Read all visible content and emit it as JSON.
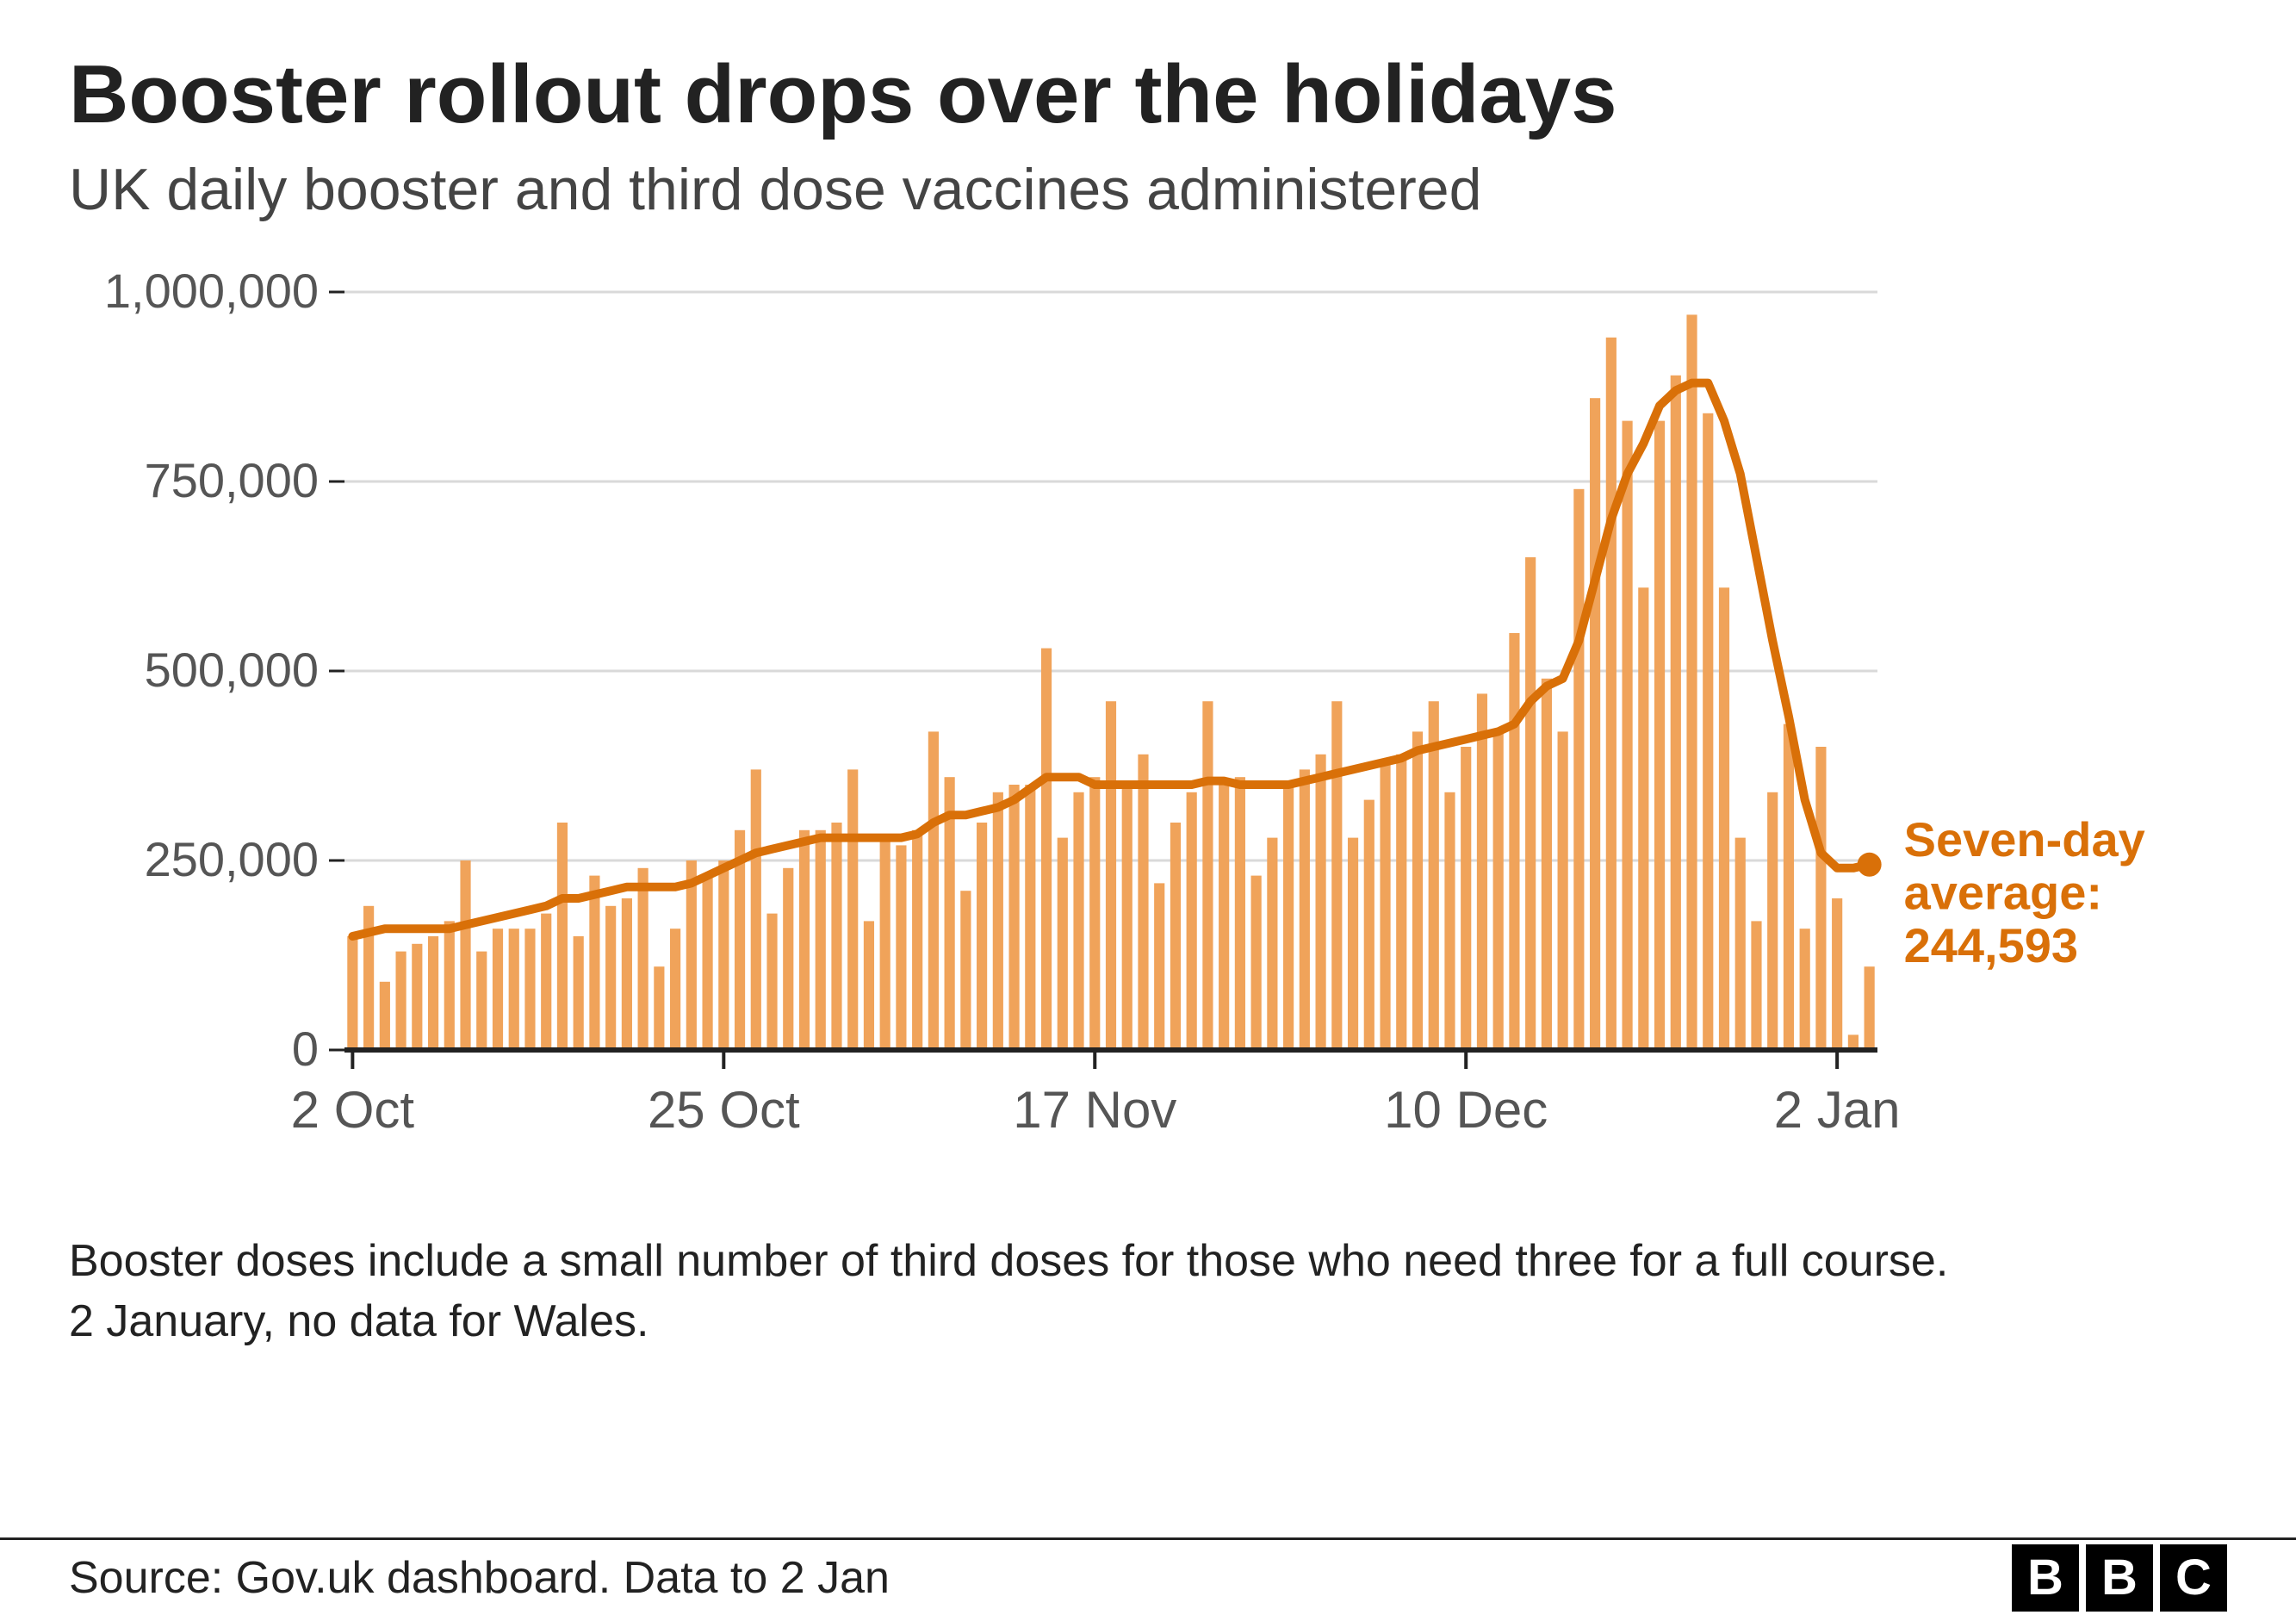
{
  "title": "Booster rollout drops over the holidays",
  "subtitle": "UK daily booster and third dose vaccines administered",
  "note_line1": "Booster doses include a small number of third doses for those who need three for a full course.",
  "note_line2": "2 January, no data for Wales.",
  "source": "Source: Gov.uk dashboard. Data to 2 Jan",
  "logo_letters": [
    "B",
    "B",
    "C"
  ],
  "annotation_line1": "Seven-day",
  "annotation_line2": "average:",
  "annotation_line3": "244,593",
  "chart": {
    "type": "bar_with_line",
    "background_color": "#ffffff",
    "bar_color": "#f0a35a",
    "line_color": "#d97008",
    "line_width": 10,
    "grid_color": "#d9d9d9",
    "axis_color": "#222222",
    "ylabel_color": "#555555",
    "xlabel_color": "#555555",
    "annotation_color": "#d97008",
    "ylabel_fontsize": 56,
    "xlabel_fontsize": 60,
    "annotation_fontsize": 56,
    "annotation_fontweight": 700,
    "ylim": [
      0,
      1000000
    ],
    "yticks": [
      {
        "v": 0,
        "label": "0"
      },
      {
        "v": 250000,
        "label": "250,000"
      },
      {
        "v": 500000,
        "label": "500,000"
      },
      {
        "v": 750000,
        "label": "750,000"
      },
      {
        "v": 1000000,
        "label": "1,000,000"
      }
    ],
    "xticks": [
      {
        "i": 0,
        "label": "2 Oct"
      },
      {
        "i": 23,
        "label": "25 Oct"
      },
      {
        "i": 46,
        "label": "17 Nov"
      },
      {
        "i": 69,
        "label": "10 Dec"
      },
      {
        "i": 92,
        "label": "2 Jan"
      }
    ],
    "bars": [
      150000,
      190000,
      90000,
      130000,
      140000,
      150000,
      170000,
      250000,
      130000,
      160000,
      160000,
      160000,
      180000,
      300000,
      150000,
      230000,
      190000,
      200000,
      240000,
      110000,
      160000,
      250000,
      230000,
      250000,
      290000,
      370000,
      180000,
      240000,
      290000,
      290000,
      300000,
      370000,
      170000,
      280000,
      270000,
      290000,
      420000,
      360000,
      210000,
      300000,
      340000,
      350000,
      350000,
      530000,
      280000,
      340000,
      360000,
      460000,
      350000,
      390000,
      220000,
      300000,
      340000,
      460000,
      350000,
      360000,
      230000,
      280000,
      350000,
      370000,
      390000,
      460000,
      280000,
      330000,
      380000,
      390000,
      420000,
      460000,
      340000,
      400000,
      470000,
      420000,
      550000,
      650000,
      490000,
      420000,
      740000,
      860000,
      940000,
      830000,
      610000,
      830000,
      890000,
      970000,
      840000,
      610000,
      280000,
      170000,
      340000,
      430000,
      160000,
      400000,
      200000,
      20000,
      110000
    ],
    "avg": [
      150000,
      155000,
      160000,
      160000,
      160000,
      160000,
      160000,
      165000,
      170000,
      175000,
      180000,
      185000,
      190000,
      200000,
      200000,
      205000,
      210000,
      215000,
      215000,
      215000,
      215000,
      220000,
      230000,
      240000,
      250000,
      260000,
      265000,
      270000,
      275000,
      280000,
      280000,
      280000,
      280000,
      280000,
      280000,
      285000,
      300000,
      310000,
      310000,
      315000,
      320000,
      330000,
      345000,
      360000,
      360000,
      360000,
      350000,
      350000,
      350000,
      350000,
      350000,
      350000,
      350000,
      355000,
      355000,
      350000,
      350000,
      350000,
      350000,
      355000,
      360000,
      365000,
      370000,
      375000,
      380000,
      385000,
      395000,
      400000,
      405000,
      410000,
      415000,
      420000,
      430000,
      460000,
      480000,
      490000,
      540000,
      620000,
      700000,
      760000,
      800000,
      850000,
      870000,
      880000,
      880000,
      830000,
      760000,
      650000,
      540000,
      440000,
      330000,
      260000,
      240000,
      240000,
      244593
    ],
    "end_dot_value": 244593
  }
}
